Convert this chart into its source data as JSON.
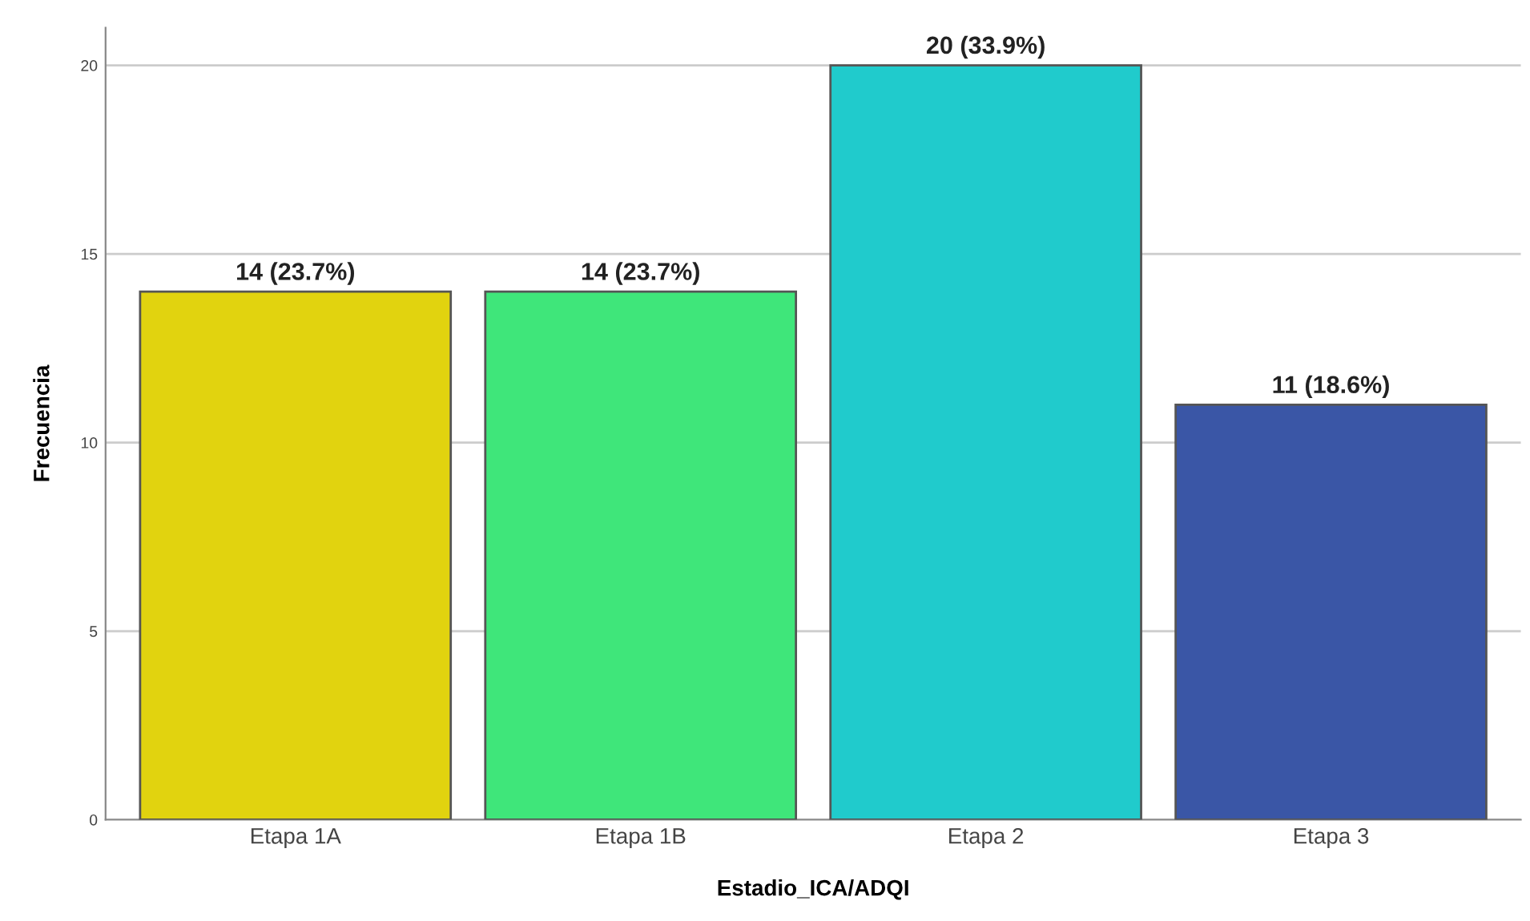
{
  "chart_data": {
    "type": "bar",
    "xlabel": "Estadio_ICA/ADQI",
    "ylabel": "Frecuencia",
    "categories": [
      "Etapa 1A",
      "Etapa 1B",
      "Etapa 2",
      "Etapa 3"
    ],
    "values": [
      14,
      14,
      20,
      11
    ],
    "colors": [
      "#e1d30f",
      "#3fe67a",
      "#20cbcc",
      "#3a56a6"
    ],
    "value_labels": [
      "14 (23.7%)",
      "14 (23.7%)",
      "20 (33.9%)",
      "11 (18.6%)"
    ],
    "ylim": [
      0,
      21
    ],
    "yticks": [
      0,
      5,
      10,
      15,
      20
    ],
    "grid": "y",
    "legend": false
  }
}
